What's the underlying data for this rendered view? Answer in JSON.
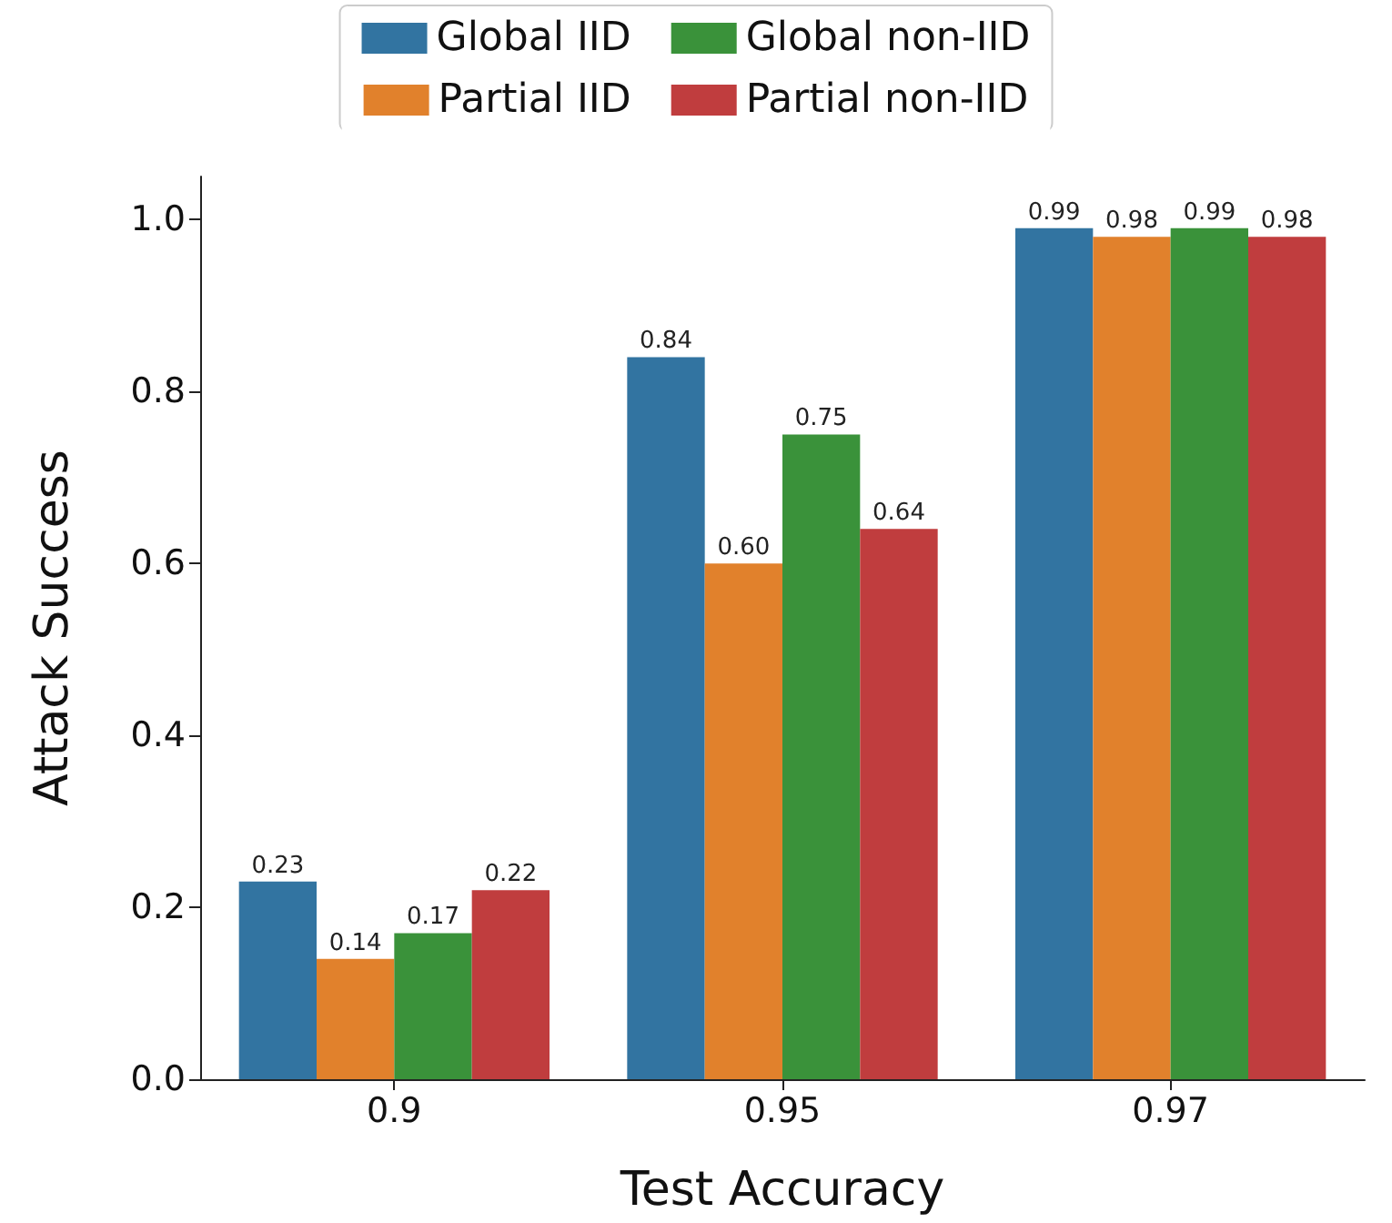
{
  "chart_data": {
    "type": "bar",
    "xlabel": "Test Accuracy",
    "ylabel": "Attack Success",
    "categories": [
      "0.9",
      "0.95",
      "0.97"
    ],
    "series": [
      {
        "name": "Global IID",
        "color": "#3274a1",
        "values": [
          0.23,
          0.84,
          0.99
        ],
        "value_labels": [
          "0.23",
          "0.84",
          "0.99"
        ]
      },
      {
        "name": "Partial IID",
        "color": "#e1812c",
        "values": [
          0.14,
          0.6,
          0.98
        ],
        "value_labels": [
          "0.14",
          "0.60",
          "0.98"
        ]
      },
      {
        "name": "Global non-IID",
        "color": "#3a923a",
        "values": [
          0.17,
          0.75,
          0.99
        ],
        "value_labels": [
          "0.17",
          "0.75",
          "0.99"
        ]
      },
      {
        "name": "Partial non-IID",
        "color": "#c03d3e",
        "values": [
          0.22,
          0.64,
          0.98
        ],
        "value_labels": [
          "0.22",
          "0.64",
          "0.98"
        ]
      }
    ],
    "ylim": [
      0,
      1.05
    ],
    "yticks": [
      {
        "value": 0,
        "label": "0.0"
      },
      {
        "value": 0.2,
        "label": "0.2"
      },
      {
        "value": 0.4,
        "label": "0.4"
      },
      {
        "value": 0.6,
        "label": "0.6"
      },
      {
        "value": 0.8,
        "label": "0.8"
      },
      {
        "value": 1,
        "label": "1.0"
      }
    ],
    "grid": false,
    "legend": "top"
  }
}
